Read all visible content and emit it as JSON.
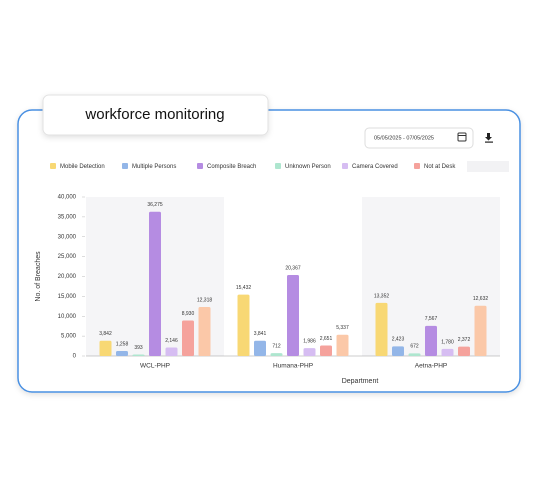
{
  "header": {
    "title": "workforce monitoring",
    "date_range": "05/05/2025 - 07/05/2025"
  },
  "chart_data": {
    "type": "bar",
    "categories": [
      "WCL-PHP",
      "Humana-PHP",
      "Aetna-PHP"
    ],
    "series": [
      {
        "name": "Mobile Detection",
        "color": "#f8d874",
        "values": [
          3842,
          15432,
          13352
        ]
      },
      {
        "name": "Multiple Persons",
        "color": "#93b6e8",
        "values": [
          1258,
          3841,
          2423
        ]
      },
      {
        "name": "Composite Breach",
        "color": "#b58ce2",
        "values": [
          36275,
          20367,
          7567
        ]
      },
      {
        "name": "Unknown Person",
        "color": "#aee6cf",
        "values": [
          393,
          712,
          672
        ]
      },
      {
        "name": "Camera Covered",
        "color": "#d6bdf2",
        "values": [
          2146,
          1986,
          1780
        ]
      },
      {
        "name": "Not at Desk",
        "color": "#f5a29c",
        "values": [
          8930,
          2651,
          2372
        ]
      },
      {
        "color": "#fbc8a8",
        "values": [
          12318,
          5337,
          12632
        ]
      }
    ],
    "value_labels": [
      [
        "3,842",
        "15,432",
        "13,352"
      ],
      [
        "1,258",
        "3,841",
        "2,423"
      ],
      [
        "36,275",
        "20,367",
        "7,567"
      ],
      [
        "393",
        "712",
        "672"
      ],
      [
        "2,146",
        "1,986",
        "1,780"
      ],
      [
        "8,930",
        "2,651",
        "2,372"
      ],
      [
        "12,318",
        "5,337",
        "12,632"
      ]
    ],
    "ylabel": "No. of Breaches",
    "xlabel": "Department",
    "ylim": [
      0,
      40000
    ],
    "yticks": [
      0,
      {
        "value": 5000,
        "label": "5,000"
      },
      {
        "value": 10000,
        "label": "10,000"
      },
      {
        "value": 15000,
        "label": "15,000"
      },
      {
        "value": 20000,
        "label": "20,000"
      },
      {
        "value": 25000,
        "label": "25,000"
      },
      {
        "value": 30000,
        "label": "30,000"
      },
      {
        "value": 35000,
        "label": "35,000"
      },
      {
        "value": 40000,
        "label": "40,000"
      }
    ]
  }
}
